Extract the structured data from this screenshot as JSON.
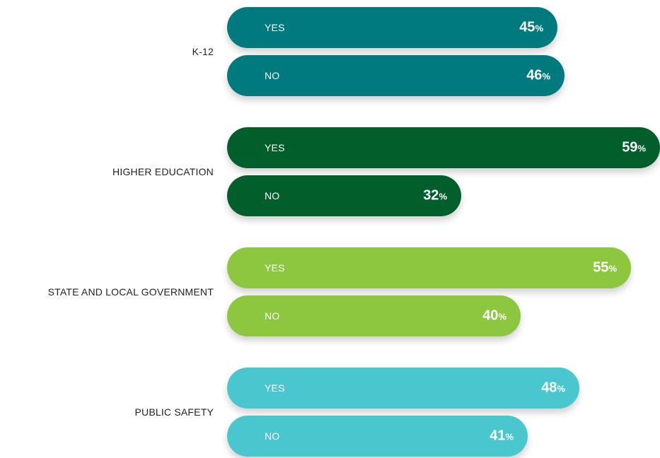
{
  "chart_data": {
    "type": "bar",
    "orientation": "horizontal",
    "categories": [
      "K-12",
      "HIGHER EDUCATION",
      "STATE AND LOCAL GOVERNMENT",
      "PUBLIC SAFETY"
    ],
    "series_labels": [
      "YES",
      "NO"
    ],
    "percent_symbol": "%",
    "groups": [
      {
        "category": "K-12",
        "color": "#017a7e",
        "bars": [
          {
            "label": "YES",
            "value": 45
          },
          {
            "label": "NO",
            "value": 46
          }
        ]
      },
      {
        "category": "HIGHER EDUCATION",
        "color": "#025f2b",
        "bars": [
          {
            "label": "YES",
            "value": 59
          },
          {
            "label": "NO",
            "value": 32
          }
        ]
      },
      {
        "category": "STATE AND LOCAL GOVERNMENT",
        "color": "#8dc63f",
        "bars": [
          {
            "label": "YES",
            "value": 55
          },
          {
            "label": "NO",
            "value": 40
          }
        ]
      },
      {
        "category": "PUBLIC SAFETY",
        "color": "#4ac6ce",
        "bars": [
          {
            "label": "YES",
            "value": 48
          },
          {
            "label": "NO",
            "value": 41
          }
        ]
      }
    ],
    "xlim": [
      0,
      60
    ],
    "grid": false,
    "legend": "none"
  }
}
